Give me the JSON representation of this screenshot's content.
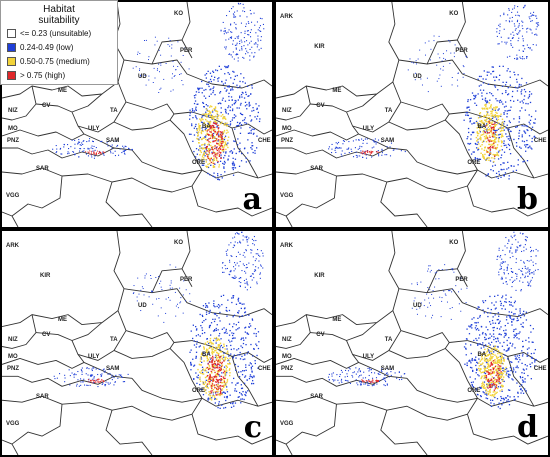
{
  "legend": {
    "title_line1": "Habitat",
    "title_line2": "suitability",
    "classes": [
      {
        "label": "<= 0.23 (unsuitable)",
        "color": "#ffffff"
      },
      {
        "label": "0.24-0.49 (low)",
        "color": "#1f3fd8"
      },
      {
        "label": "0.50-0.75 (medium)",
        "color": "#f2d33a"
      },
      {
        "label": "> 0.75 (high)",
        "color": "#e0282a"
      }
    ]
  },
  "panels": [
    {
      "letter": "a"
    },
    {
      "letter": "b"
    },
    {
      "letter": "c"
    },
    {
      "letter": "d"
    }
  ],
  "regions": {
    "ark": "ARK",
    "ko": "KO",
    "kir": "KIR",
    "per": "PER",
    "ud": "UD",
    "niz": "NIZ",
    "me": "ME",
    "cv": "CV",
    "ta": "TA",
    "mo": "MO",
    "pnz": "PNZ",
    "uly": "ULY",
    "sam": "SAM",
    "ba": "BA",
    "che": "CHE",
    "ore": "ORE",
    "sar": "SAR",
    "vgg": "VGG"
  },
  "colors": {
    "border": "#333333",
    "low": "#1f3fd8",
    "medium": "#f2d33a",
    "high": "#e0282a",
    "background": "#ffffff"
  }
}
